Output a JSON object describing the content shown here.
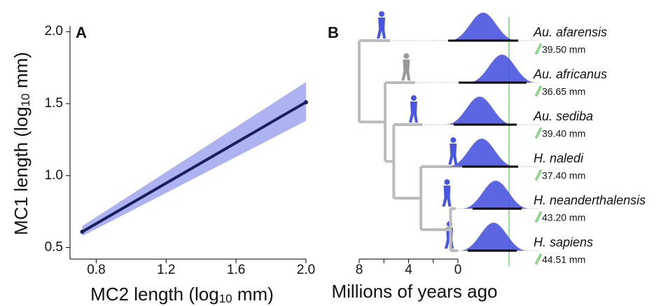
{
  "chart_data": [
    {
      "type": "line",
      "panel": "A",
      "xlabel": {
        "text": "MC2 length (log",
        "sub": "10",
        "end": " mm)"
      },
      "ylabel": {
        "text": "MC1 length (log",
        "sub": "10",
        "end": " mm)"
      },
      "x": [
        0.72,
        2.0
      ],
      "series": [
        {
          "color": "#1a1f5e",
          "values": [
            0.61,
            1.51
          ]
        }
      ],
      "band": {
        "color": "#4a55e0",
        "low": [
          0.58,
          1.38
        ],
        "high": [
          0.65,
          1.65
        ]
      },
      "xlim": [
        0.65,
        2.0
      ],
      "ylim": [
        0.42,
        2.04
      ],
      "xticks": [
        0.8,
        1.2,
        1.6,
        {
          "value": 2.0,
          "label": "2.0"
        }
      ],
      "yticks": [
        0.5,
        {
          "value": 1.0,
          "label": "1.0"
        },
        1.5,
        {
          "value": 2.0,
          "label": "2.0"
        }
      ]
    },
    {
      "type": "tree",
      "panel": "B",
      "xlabel": "Millions of years ago",
      "xlim": [
        8,
        0
      ],
      "xticks": [
        8,
        4,
        0
      ],
      "minor_xticks": [
        6,
        2
      ],
      "tips": [
        {
          "name": "Au. afarensis",
          "length": "39.50 mm",
          "age": 5.5
        },
        {
          "name": "Au. africanus",
          "length": "36.65 mm",
          "age": 3.5
        },
        {
          "name": "Au. sediba",
          "length": "39.40 mm",
          "age": 2.9
        },
        {
          "name": "H. naledi",
          "length": "37.40 mm",
          "age": -0.3
        },
        {
          "name": "H. neanderthalensis",
          "length": "43.20 mm",
          "age": 0.2
        },
        {
          "name": "H. sapiens",
          "length": "44.51 mm",
          "age": 0
        }
      ],
      "node_times": [
        8,
        5.9,
        5.2,
        3.0,
        0.6
      ]
    }
  ]
}
